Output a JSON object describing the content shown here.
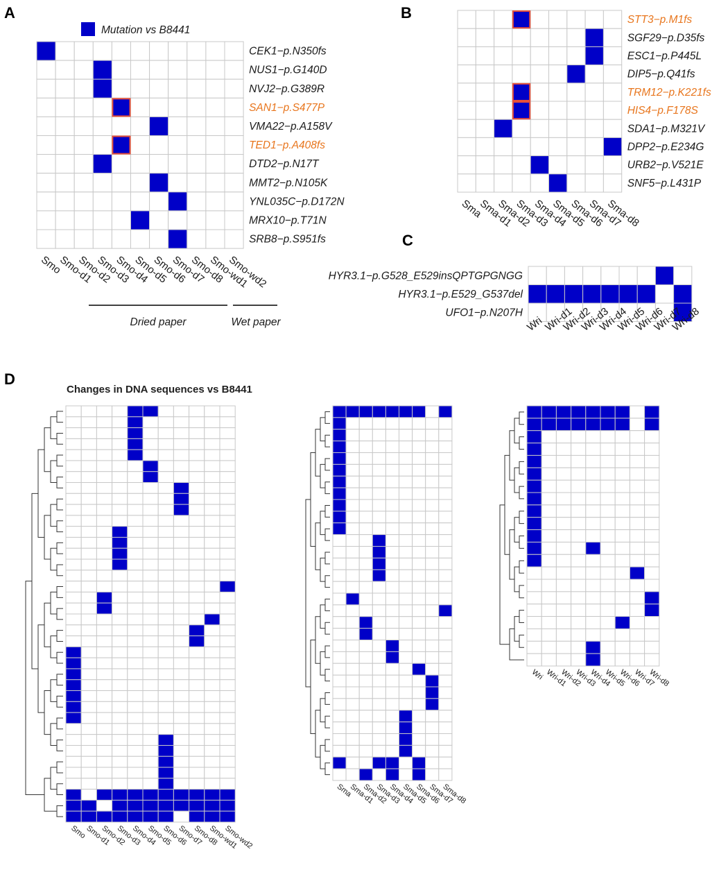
{
  "colors": {
    "mutation": "#0000c8",
    "empty": "#ffffff",
    "grid": "#c8c8c8",
    "highlight_text": "#e8761e",
    "highlight_border": "#e8503a"
  },
  "legend": {
    "label": "Mutation vs B8441"
  },
  "groups": {
    "dried": "Dried paper",
    "wet": "Wet paper"
  },
  "chart_data": [
    {
      "panel": "A",
      "type": "heatmap",
      "columns": [
        "Smo",
        "Smo-d1",
        "Smo-d2",
        "Smo-d3",
        "Smo-d4",
        "Smo-d5",
        "Smo-d6",
        "Smo-d7",
        "Smo-d8",
        "Smo-wd1",
        "Smo-wd2"
      ],
      "rows": [
        {
          "label": "CEK1−p.N350fs",
          "highlight": false,
          "cols": [
            0
          ]
        },
        {
          "label": "NUS1−p.G140D",
          "highlight": false,
          "cols": [
            3
          ]
        },
        {
          "label": "NVJ2−p.G389R",
          "highlight": false,
          "cols": [
            3
          ]
        },
        {
          "label": "SAN1−p.S477P",
          "highlight": true,
          "cols": [
            4
          ]
        },
        {
          "label": "VMA22−p.A158V",
          "highlight": false,
          "cols": [
            6
          ]
        },
        {
          "label": "TED1−p.A408fs",
          "highlight": true,
          "cols": [
            4
          ]
        },
        {
          "label": "DTD2−p.N17T",
          "highlight": false,
          "cols": [
            3
          ]
        },
        {
          "label": "MMT2−p.N105K",
          "highlight": false,
          "cols": [
            6
          ]
        },
        {
          "label": "YNL035C−p.D172N",
          "highlight": false,
          "cols": [
            7
          ]
        },
        {
          "label": "MRX10−p.T71N",
          "highlight": false,
          "cols": [
            5
          ]
        },
        {
          "label": "SRB8−p.S951fs",
          "highlight": false,
          "cols": [
            7
          ]
        }
      ]
    },
    {
      "panel": "B",
      "type": "heatmap",
      "columns": [
        "Sma",
        "Sma-d1",
        "Sma-d2",
        "Sma-d3",
        "Sma-d4",
        "Sma-d5",
        "Sma-d6",
        "Sma-d7",
        "Sma-d8"
      ],
      "rows": [
        {
          "label": "STT3−p.M1fs",
          "highlight": true,
          "cols": [
            3
          ]
        },
        {
          "label": "SGF29−p.D35fs",
          "highlight": false,
          "cols": [
            7
          ]
        },
        {
          "label": "ESC1−p.P445L",
          "highlight": false,
          "cols": [
            7
          ]
        },
        {
          "label": "DIP5−p.Q41fs",
          "highlight": false,
          "cols": [
            6
          ]
        },
        {
          "label": "TRM12−p.K221fs",
          "highlight": true,
          "cols": [
            3
          ]
        },
        {
          "label": "HIS4−p.F178S",
          "highlight": true,
          "cols": [
            3
          ]
        },
        {
          "label": "SDA1−p.M321V",
          "highlight": false,
          "cols": [
            2
          ]
        },
        {
          "label": "DPP2−p.E234G",
          "highlight": false,
          "cols": [
            8
          ]
        },
        {
          "label": "URB2−p.V521E",
          "highlight": false,
          "cols": [
            4
          ]
        },
        {
          "label": "SNF5−p.L431P",
          "highlight": false,
          "cols": [
            5
          ]
        }
      ]
    },
    {
      "panel": "C",
      "type": "heatmap",
      "columns": [
        "Wri",
        "Wri-d1",
        "Wri-d2",
        "Wri-d3",
        "Wri-d4",
        "Wri-d5",
        "Wri-d6",
        "Wri-d7",
        "Wri-d8"
      ],
      "rows": [
        {
          "label": "HYR3.1−p.G528_E529insQPTGPGNGG",
          "highlight": false,
          "cols": [
            7
          ]
        },
        {
          "label": "HYR3.1−p.E529_G537del",
          "highlight": false,
          "cols": [
            0,
            1,
            2,
            3,
            4,
            5,
            6,
            8
          ]
        },
        {
          "label": "UFO1−p.N207H",
          "highlight": false,
          "cols": [
            8
          ]
        }
      ]
    },
    {
      "panel": "D",
      "title": "Changes in DNA sequences vs B8441",
      "type": "heatmap",
      "subplots": [
        {
          "columns": [
            "Smo",
            "Smo-d1",
            "Smo-d2",
            "Smo-d3",
            "Smo-d4",
            "Smo-d5",
            "Smo-d6",
            "Smo-d7",
            "Smo-d8",
            "Smo-wd1",
            "Smo-wd2"
          ],
          "rows": [
            [
              4,
              5
            ],
            [
              4
            ],
            [
              4
            ],
            [
              4
            ],
            [
              4
            ],
            [
              5
            ],
            [
              5
            ],
            [
              7
            ],
            [
              7
            ],
            [
              7
            ],
            [],
            [
              3
            ],
            [
              3
            ],
            [
              3
            ],
            [
              3
            ],
            [],
            [
              10
            ],
            [
              2
            ],
            [
              2
            ],
            [
              9
            ],
            [
              8
            ],
            [
              8
            ],
            [
              0
            ],
            [
              0
            ],
            [
              0
            ],
            [
              0
            ],
            [
              0
            ],
            [
              0
            ],
            [
              0
            ],
            [],
            [
              6
            ],
            [
              6
            ],
            [
              6
            ],
            [
              6
            ],
            [
              6
            ],
            [
              0,
              2,
              3,
              4,
              5,
              6,
              7,
              8,
              9,
              10
            ],
            [
              0,
              1,
              3,
              4,
              5,
              6,
              7,
              8,
              9,
              10
            ],
            [
              0,
              1,
              2,
              3,
              4,
              5,
              6,
              8,
              9,
              10
            ]
          ]
        },
        {
          "columns": [
            "Sma",
            "Sma-d1",
            "Sma-d2",
            "Sma-d3",
            "Sma-d4",
            "Sma-d5",
            "Sma-d6",
            "Sma-d7",
            "Sma-d8"
          ],
          "rows": [
            [
              0,
              1,
              2,
              3,
              4,
              5,
              6,
              8
            ],
            [
              0
            ],
            [
              0
            ],
            [
              0
            ],
            [
              0
            ],
            [
              0
            ],
            [
              0
            ],
            [
              0
            ],
            [
              0
            ],
            [
              0
            ],
            [
              0
            ],
            [
              3
            ],
            [
              3
            ],
            [
              3
            ],
            [
              3
            ],
            [],
            [
              1
            ],
            [
              8
            ],
            [
              2
            ],
            [
              2
            ],
            [
              4
            ],
            [
              4
            ],
            [
              6
            ],
            [
              7
            ],
            [
              7
            ],
            [
              7
            ],
            [
              5
            ],
            [
              5
            ],
            [
              5
            ],
            [
              5
            ],
            [
              0,
              3,
              4,
              6
            ],
            [
              2,
              4,
              6
            ]
          ]
        },
        {
          "columns": [
            "Wri",
            "Wri-d1",
            "Wri-d2",
            "Wri-d3",
            "Wri-d4",
            "Wri-d5",
            "Wri-d6",
            "Wri-d7",
            "Wri-d8"
          ],
          "rows": [
            [
              0,
              1,
              2,
              3,
              4,
              5,
              6,
              8
            ],
            [
              0,
              1,
              2,
              3,
              4,
              5,
              6,
              8
            ],
            [
              0
            ],
            [
              0
            ],
            [
              0
            ],
            [
              0
            ],
            [
              0
            ],
            [
              0
            ],
            [
              0
            ],
            [
              0
            ],
            [
              0
            ],
            [
              0,
              4
            ],
            [
              0
            ],
            [
              7
            ],
            [],
            [
              8
            ],
            [
              8
            ],
            [
              6
            ],
            [],
            [
              4
            ],
            [
              4
            ]
          ]
        }
      ]
    }
  ]
}
